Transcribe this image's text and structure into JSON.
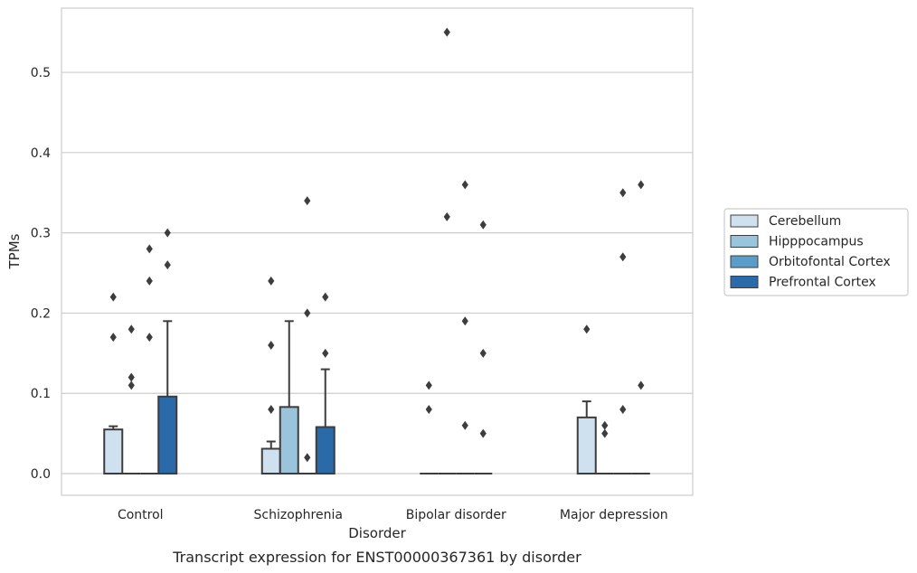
{
  "chart_data": {
    "type": "box",
    "caption": "Transcript expression for ENST00000367361 by disorder",
    "xlabel": "Disorder",
    "ylabel": "TPMs",
    "ylim": [
      -0.027,
      0.58
    ],
    "yticks": [
      0.0,
      0.1,
      0.2,
      0.3,
      0.4,
      0.5
    ],
    "ytick_labels": [
      "0.0",
      "0.1",
      "0.2",
      "0.3",
      "0.4",
      "0.5"
    ],
    "grid": true,
    "legend_position": "right",
    "categories": [
      "Control",
      "Schizophrenia",
      "Bipolar disorder",
      "Major depression"
    ],
    "series": [
      {
        "name": "Cerebellum",
        "color": "#cfe0ef",
        "boxes": [
          {
            "q1": 0.0,
            "median": 0.0,
            "q3": 0.055,
            "whisker_low": 0.0,
            "whisker_high": 0.059,
            "outliers": [
              0.22,
              0.17
            ]
          },
          {
            "q1": 0.0,
            "median": 0.0,
            "q3": 0.031,
            "whisker_low": 0.0,
            "whisker_high": 0.04,
            "outliers": [
              0.24,
              0.16,
              0.08
            ]
          },
          {
            "q1": 0.0,
            "median": 0.0,
            "q3": 0.0,
            "whisker_low": 0.0,
            "whisker_high": 0.0,
            "outliers": [
              0.11,
              0.08
            ]
          },
          {
            "q1": 0.0,
            "median": 0.0,
            "q3": 0.07,
            "whisker_low": 0.0,
            "whisker_high": 0.09,
            "outliers": [
              0.18
            ]
          }
        ]
      },
      {
        "name": "Hipppocampus",
        "color": "#9ac3dc",
        "boxes": [
          {
            "q1": 0.0,
            "median": 0.0,
            "q3": 0.0,
            "whisker_low": 0.0,
            "whisker_high": 0.0,
            "outliers": [
              0.18,
              0.12,
              0.11
            ]
          },
          {
            "q1": 0.0,
            "median": 0.0,
            "q3": 0.083,
            "whisker_low": 0.0,
            "whisker_high": 0.19,
            "outliers": []
          },
          {
            "q1": 0.0,
            "median": 0.0,
            "q3": 0.0,
            "whisker_low": 0.0,
            "whisker_high": 0.0,
            "outliers": [
              0.55,
              0.32
            ]
          },
          {
            "q1": 0.0,
            "median": 0.0,
            "q3": 0.0,
            "whisker_low": 0.0,
            "whisker_high": 0.0,
            "outliers": [
              0.06,
              0.05
            ]
          }
        ]
      },
      {
        "name": "Orbitofontal Cortex",
        "color": "#5a9dc9",
        "boxes": [
          {
            "q1": 0.0,
            "median": 0.0,
            "q3": 0.0,
            "whisker_low": 0.0,
            "whisker_high": 0.0,
            "outliers": [
              0.28,
              0.24,
              0.17
            ]
          },
          {
            "q1": 0.0,
            "median": 0.0,
            "q3": 0.0,
            "whisker_low": 0.0,
            "whisker_high": 0.0,
            "outliers": [
              0.34,
              0.2,
              0.02
            ]
          },
          {
            "q1": 0.0,
            "median": 0.0,
            "q3": 0.0,
            "whisker_low": 0.0,
            "whisker_high": 0.0,
            "outliers": [
              0.36,
              0.19,
              0.06
            ]
          },
          {
            "q1": 0.0,
            "median": 0.0,
            "q3": 0.0,
            "whisker_low": 0.0,
            "whisker_high": 0.0,
            "outliers": [
              0.35,
              0.27,
              0.08
            ]
          }
        ]
      },
      {
        "name": "Prefrontal Cortex",
        "color": "#2b6aa9",
        "boxes": [
          {
            "q1": 0.0,
            "median": 0.0,
            "q3": 0.096,
            "whisker_low": 0.0,
            "whisker_high": 0.19,
            "outliers": [
              0.3,
              0.26
            ]
          },
          {
            "q1": 0.0,
            "median": 0.0,
            "q3": 0.058,
            "whisker_low": 0.0,
            "whisker_high": 0.13,
            "outliers": [
              0.22,
              0.15
            ]
          },
          {
            "q1": 0.0,
            "median": 0.0,
            "q3": 0.0,
            "whisker_low": 0.0,
            "whisker_high": 0.0,
            "outliers": [
              0.31,
              0.15,
              0.05
            ]
          },
          {
            "q1": 0.0,
            "median": 0.0,
            "q3": 0.0,
            "whisker_low": 0.0,
            "whisker_high": 0.0,
            "outliers": [
              0.36,
              0.11
            ]
          }
        ]
      }
    ]
  }
}
